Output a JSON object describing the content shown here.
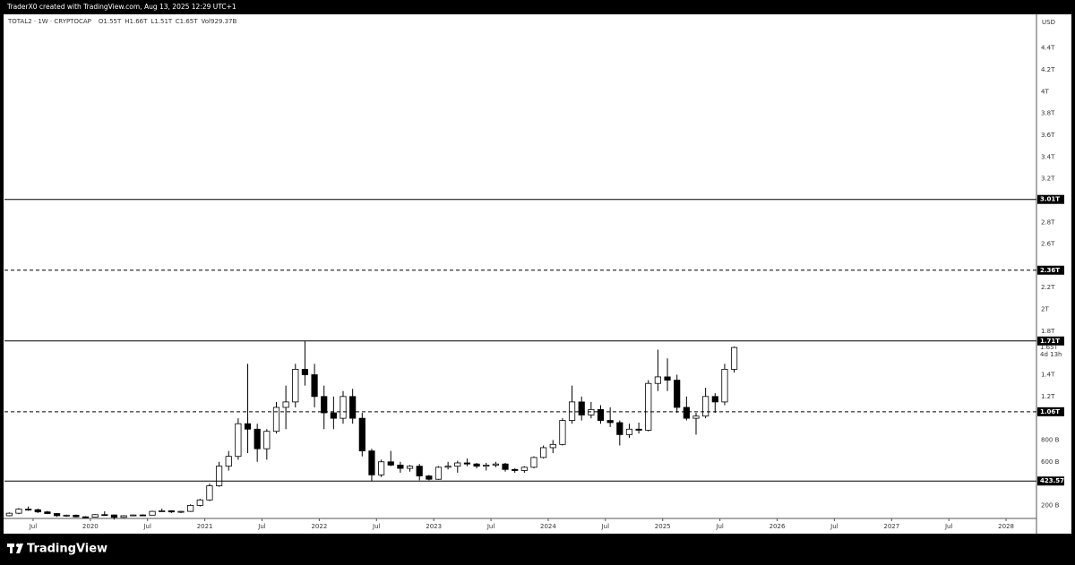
{
  "header": "TraderX0 created with TradingView.com, Aug 13, 2025 12:29 UTC+1",
  "footer": {
    "brand": "TradingView"
  },
  "chart_data": {
    "type": "candlestick",
    "legend": {
      "symbol": "TOTAL2 · 1W · CRYPTOCAP",
      "items": [
        {
          "label": "O",
          "value": "1.55T"
        },
        {
          "label": "H",
          "value": "1.66T"
        },
        {
          "label": "L",
          "value": "1.51T"
        },
        {
          "label": "C",
          "value": "1.65T"
        },
        {
          "label": "Vol",
          "value": "929.37B"
        }
      ]
    },
    "currency": "USD",
    "x": [
      "2019-04",
      "2019-05",
      "2019-06",
      "2019-07",
      "2019-08",
      "2019-09",
      "2019-10",
      "2019-11",
      "2019-12",
      "2020-01",
      "2020-02",
      "2020-03",
      "2020-04",
      "2020-05",
      "2020-06",
      "2020-07",
      "2020-08",
      "2020-09",
      "2020-10",
      "2020-11",
      "2020-12",
      "2021-01",
      "2021-02",
      "2021-03",
      "2021-04",
      "2021-05",
      "2021-06",
      "2021-07",
      "2021-08",
      "2021-09",
      "2021-10",
      "2021-11",
      "2021-12",
      "2022-01",
      "2022-02",
      "2022-03",
      "2022-04",
      "2022-05",
      "2022-06",
      "2022-07",
      "2022-08",
      "2022-09",
      "2022-10",
      "2022-11",
      "2022-12",
      "2023-01",
      "2023-02",
      "2023-03",
      "2023-04",
      "2023-05",
      "2023-06",
      "2023-07",
      "2023-08",
      "2023-09",
      "2023-10",
      "2023-11",
      "2023-12",
      "2024-01",
      "2024-02",
      "2024-03",
      "2024-04",
      "2024-05",
      "2024-06",
      "2024-07",
      "2024-08",
      "2024-09",
      "2024-10",
      "2024-11",
      "2024-12",
      "2025-01",
      "2025-02",
      "2025-03",
      "2025-04",
      "2025-05",
      "2025-06",
      "2025-07",
      "2025-08"
    ],
    "open": [
      105,
      128,
      165,
      160,
      140,
      125,
      105,
      110,
      95,
      92,
      115,
      112,
      90,
      105,
      112,
      110,
      145,
      150,
      140,
      145,
      200,
      250,
      380,
      560,
      650,
      950,
      900,
      720,
      880,
      1100,
      1150,
      1450,
      1400,
      1200,
      1050,
      1000,
      1200,
      1000,
      700,
      480,
      600,
      570,
      540,
      560,
      470,
      440,
      550,
      560,
      590,
      580,
      560,
      570,
      580,
      530,
      520,
      550,
      640,
      730,
      760,
      980,
      1150,
      1030,
      1080,
      980,
      960,
      850,
      900,
      890,
      1320,
      1380,
      1350,
      1100,
      1000,
      1020,
      1200,
      1150,
      1450
    ],
    "high": [
      135,
      175,
      190,
      170,
      150,
      130,
      115,
      115,
      100,
      120,
      145,
      115,
      110,
      115,
      118,
      150,
      170,
      155,
      150,
      210,
      260,
      400,
      600,
      700,
      1000,
      1500,
      950,
      900,
      1150,
      1300,
      1500,
      1710,
      1500,
      1300,
      1200,
      1250,
      1270,
      1050,
      720,
      620,
      700,
      600,
      570,
      580,
      480,
      560,
      600,
      610,
      630,
      590,
      590,
      600,
      590,
      540,
      560,
      650,
      750,
      800,
      1000,
      1300,
      1200,
      1150,
      1120,
      1100,
      980,
      950,
      960,
      1350,
      1630,
      1550,
      1400,
      1200,
      1050,
      1280,
      1230,
      1500,
      1660
    ],
    "low": [
      100,
      120,
      150,
      130,
      120,
      95,
      95,
      90,
      85,
      90,
      110,
      70,
      85,
      100,
      105,
      108,
      140,
      130,
      130,
      140,
      190,
      240,
      370,
      520,
      620,
      680,
      600,
      620,
      860,
      900,
      1100,
      1300,
      1100,
      900,
      900,
      950,
      950,
      650,
      420,
      460,
      560,
      500,
      510,
      430,
      430,
      435,
      530,
      500,
      560,
      540,
      520,
      550,
      510,
      500,
      500,
      540,
      630,
      680,
      750,
      950,
      980,
      1000,
      950,
      920,
      750,
      820,
      860,
      880,
      1250,
      1250,
      1050,
      980,
      850,
      1000,
      1050,
      1120,
      1420
    ],
    "close": [
      128,
      165,
      160,
      140,
      125,
      105,
      110,
      95,
      92,
      115,
      112,
      90,
      105,
      112,
      110,
      145,
      150,
      140,
      145,
      200,
      250,
      380,
      560,
      650,
      950,
      900,
      720,
      880,
      1100,
      1150,
      1450,
      1400,
      1200,
      1050,
      1000,
      1200,
      1000,
      700,
      480,
      600,
      570,
      540,
      560,
      470,
      440,
      550,
      560,
      590,
      580,
      560,
      570,
      580,
      530,
      520,
      550,
      640,
      730,
      760,
      980,
      1150,
      1030,
      1080,
      980,
      960,
      850,
      900,
      890,
      1320,
      1380,
      1350,
      1100,
      1000,
      1020,
      1200,
      1150,
      1450,
      1650
    ],
    "up_color": "#ffffff",
    "down_color": "#000000",
    "edge_color": "#000000",
    "xlim": [
      "2019-04",
      "2028-04"
    ],
    "xticks": [
      {
        "value": "2019-07",
        "label": "Jul"
      },
      {
        "value": "2020-01",
        "label": "2020"
      },
      {
        "value": "2020-07",
        "label": "Jul"
      },
      {
        "value": "2021-01",
        "label": "2021"
      },
      {
        "value": "2021-07",
        "label": "Jul"
      },
      {
        "value": "2022-01",
        "label": "2022"
      },
      {
        "value": "2022-07",
        "label": "Jul"
      },
      {
        "value": "2023-01",
        "label": "2023"
      },
      {
        "value": "2023-07",
        "label": "Jul"
      },
      {
        "value": "2024-01",
        "label": "2024"
      },
      {
        "value": "2024-07",
        "label": "Jul"
      },
      {
        "value": "2025-01",
        "label": "2025"
      },
      {
        "value": "2025-07",
        "label": "Jul"
      },
      {
        "value": "2026-01",
        "label": "2026"
      },
      {
        "value": "2026-07",
        "label": "Jul"
      },
      {
        "value": "2027-01",
        "label": "2027"
      },
      {
        "value": "2027-07",
        "label": "Jul"
      },
      {
        "value": "2028-01",
        "label": "2028"
      }
    ],
    "ylim": [
      80,
      4710
    ],
    "yticks": [
      {
        "value": 200,
        "label": "200 B"
      },
      {
        "value": 600,
        "label": "600 B"
      },
      {
        "value": 800,
        "label": "800 B"
      },
      {
        "value": 1200,
        "label": "1.2T"
      },
      {
        "value": 1400,
        "label": "1.4T"
      },
      {
        "value": 1800,
        "label": "1.8T"
      },
      {
        "value": 2000,
        "label": "2T"
      },
      {
        "value": 2200,
        "label": "2.2T"
      },
      {
        "value": 2600,
        "label": "2.6T"
      },
      {
        "value": 2800,
        "label": "2.8T"
      },
      {
        "value": 3200,
        "label": "3.2T"
      },
      {
        "value": 3400,
        "label": "3.4T"
      },
      {
        "value": 3600,
        "label": "3.6T"
      },
      {
        "value": 3800,
        "label": "3.8T"
      },
      {
        "value": 4000,
        "label": "4T"
      },
      {
        "value": 4200,
        "label": "4.2T"
      },
      {
        "value": 4400,
        "label": "4.4T"
      }
    ],
    "levels": [
      {
        "value": 3010,
        "label": "3.01T",
        "style": "solid"
      },
      {
        "value": 2360,
        "label": "2.36T",
        "style": "dashed"
      },
      {
        "value": 1710,
        "label": "1.71T",
        "style": "solid"
      },
      {
        "value": 1060,
        "label": "1.06T",
        "style": "dashed"
      },
      {
        "value": 423.57,
        "label": "423.57B",
        "style": "solid"
      }
    ],
    "last_price": {
      "value": 1650,
      "label": "1.65T"
    },
    "countdown": "4d 13h"
  }
}
